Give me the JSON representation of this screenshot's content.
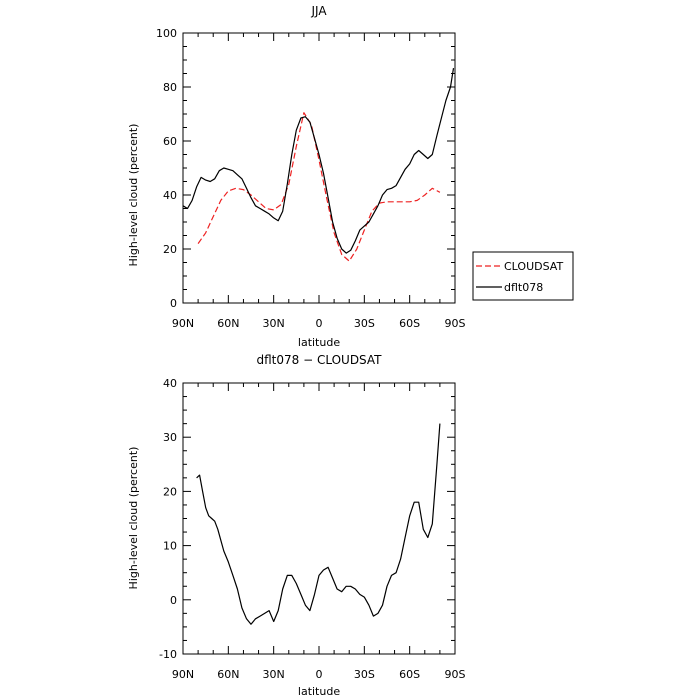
{
  "chart_data": [
    {
      "type": "line",
      "title": "JJA",
      "xlabel": "latitude",
      "ylabel": "High-level cloud (percent)",
      "xlim": [
        90,
        -90
      ],
      "ylim": [
        0,
        100
      ],
      "xticks": [
        {
          "value": 90,
          "label": "90N"
        },
        {
          "value": 60,
          "label": "60N"
        },
        {
          "value": 30,
          "label": "30N"
        },
        {
          "value": 0,
          "label": "0"
        },
        {
          "value": -30,
          "label": "30S"
        },
        {
          "value": -60,
          "label": "60S"
        },
        {
          "value": -90,
          "label": "90S"
        }
      ],
      "yticks": [
        0,
        20,
        40,
        60,
        80,
        100
      ],
      "legend": "right",
      "series": [
        {
          "name": "CLOUDSAT",
          "color": "#ee2222",
          "dash": true,
          "x": [
            80,
            75,
            70,
            65,
            60,
            55,
            50,
            45,
            40,
            35,
            30,
            25,
            20,
            15,
            10,
            5,
            0,
            -5,
            -10,
            -15,
            -20,
            -25,
            -30,
            -35,
            -40,
            -45,
            -50,
            -55,
            -60,
            -65,
            -70,
            -75,
            -80
          ],
          "y": [
            22,
            26,
            32,
            38,
            41.5,
            42.5,
            42,
            40,
            37.5,
            35,
            34.5,
            36.5,
            44,
            58,
            70.5,
            66,
            53,
            39,
            26,
            18,
            15.5,
            20,
            27,
            34,
            37,
            37.5,
            37.5,
            37.5,
            37.5,
            38,
            40,
            42.5,
            41
          ]
        },
        {
          "name": "dflt078",
          "color": "#000000",
          "dash": false,
          "x": [
            90,
            87,
            84,
            81,
            78,
            75,
            72,
            69,
            66,
            63,
            60,
            57,
            54,
            51,
            48,
            45,
            42,
            39,
            36,
            33,
            30,
            27,
            24,
            21,
            18,
            15,
            12,
            9,
            6,
            3,
            0,
            -3,
            -6,
            -9,
            -12,
            -15,
            -18,
            -21,
            -24,
            -27,
            -30,
            -33,
            -36,
            -39,
            -42,
            -45,
            -48,
            -51,
            -54,
            -57,
            -60,
            -63,
            -66,
            -69,
            -72,
            -75,
            -78,
            -81,
            -84,
            -87,
            -89
          ],
          "y": [
            36,
            35,
            38,
            43,
            46.5,
            45.5,
            45,
            46,
            49,
            50,
            49.5,
            49,
            47.5,
            46,
            42.5,
            39,
            36,
            35,
            34,
            33,
            31.5,
            30.5,
            34,
            44,
            55,
            64,
            68.5,
            69,
            67,
            61,
            55,
            48,
            39,
            30,
            24,
            20,
            18.5,
            19.5,
            23,
            27,
            28.5,
            30,
            33,
            36,
            40,
            42,
            42.5,
            43.5,
            46.5,
            49.5,
            51.5,
            55,
            56.5,
            55,
            53.5,
            55,
            62,
            68.5,
            75,
            80,
            87
          ]
        }
      ]
    },
    {
      "type": "line",
      "title": "dflt078 − CLOUDSAT",
      "xlabel": "latitude",
      "ylabel": "High-level cloud (percent)",
      "xlim": [
        90,
        -90
      ],
      "ylim": [
        -10,
        40
      ],
      "xticks": [
        {
          "value": 90,
          "label": "90N"
        },
        {
          "value": 60,
          "label": "60N"
        },
        {
          "value": 30,
          "label": "30N"
        },
        {
          "value": 0,
          "label": "0"
        },
        {
          "value": -30,
          "label": "30S"
        },
        {
          "value": -60,
          "label": "60S"
        },
        {
          "value": -90,
          "label": "90S"
        }
      ],
      "yticks": [
        -10,
        0,
        10,
        20,
        30,
        40
      ],
      "series": [
        {
          "color": "#000000",
          "dash": false,
          "x": [
            81,
            79,
            77,
            75,
            73,
            71,
            69,
            67,
            65,
            63,
            60,
            57,
            54,
            51,
            48,
            45,
            42,
            39,
            36,
            33,
            30,
            27,
            24,
            21,
            18,
            15,
            12,
            9,
            6,
            3,
            0,
            -3,
            -6,
            -9,
            -12,
            -15,
            -18,
            -21,
            -24,
            -27,
            -30,
            -33,
            -36,
            -39,
            -42,
            -45,
            -48,
            -51,
            -54,
            -57,
            -60,
            -63,
            -66,
            -69,
            -72,
            -75,
            -78,
            -80
          ],
          "y": [
            22.5,
            23,
            20,
            17,
            15.5,
            15,
            14.5,
            13,
            11,
            9,
            7,
            4.5,
            2,
            -1.5,
            -3.5,
            -4.5,
            -3.5,
            -3,
            -2.5,
            -2,
            -4,
            -2,
            2,
            4.5,
            4.5,
            3,
            1,
            -1,
            -2,
            1,
            4.5,
            5.5,
            6,
            4,
            2,
            1.5,
            2.5,
            2.5,
            2,
            1,
            0.5,
            -1,
            -3,
            -2.5,
            -1,
            2.5,
            4.5,
            5,
            7.5,
            11.5,
            15.5,
            18,
            18,
            13,
            11.5,
            14,
            25,
            32.5
          ]
        }
      ]
    }
  ],
  "legend": {
    "items": [
      {
        "label": "CLOUDSAT",
        "color": "#ee2222",
        "dash": true
      },
      {
        "label": "dflt078",
        "color": "#000000",
        "dash": false
      }
    ]
  }
}
